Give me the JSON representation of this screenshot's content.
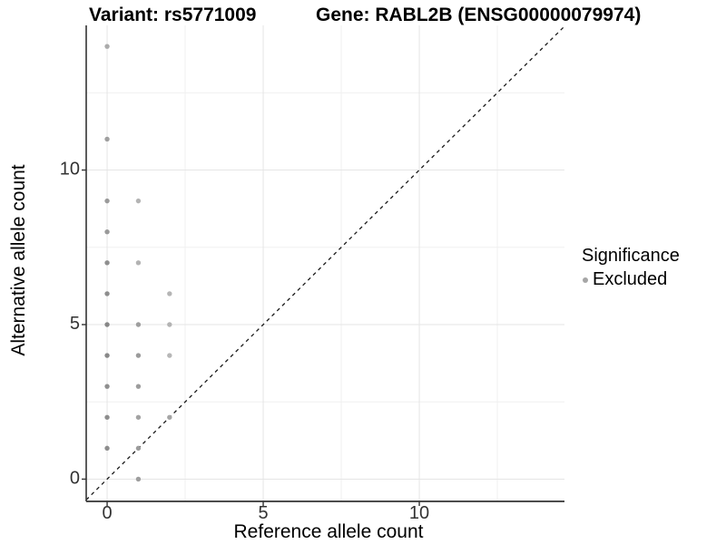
{
  "chart_data": {
    "type": "scatter",
    "title_left": "Variant: rs5771009",
    "title_right": "Gene: RABL2B (ENSG00000079974)",
    "xlabel": "Reference allele count",
    "ylabel": "Alternative allele count",
    "xlim": [
      -0.67,
      14.65
    ],
    "ylim": [
      -0.72,
      14.68
    ],
    "x_ticks": [
      0,
      5,
      10
    ],
    "y_ticks": [
      0,
      5,
      10
    ],
    "x_tick_labels": [
      "0",
      "5",
      "10"
    ],
    "y_tick_labels": [
      "0",
      "5",
      "10"
    ],
    "x_minor_ticks": [
      2.5,
      7.5,
      12.5
    ],
    "y_minor_ticks": [
      2.5,
      7.5,
      12.5
    ],
    "grid": "major and minor gridlines, white background",
    "identity_line": {
      "style": "dashed",
      "from": -0.67,
      "to": 14.66,
      "color": "#1a1a1a"
    },
    "legend": {
      "title": "Significance",
      "position": "right",
      "entries": [
        {
          "label": "Excluded",
          "color": "#a6a6a6"
        }
      ]
    },
    "series": [
      {
        "name": "Excluded",
        "points": [
          {
            "x": 0,
            "y": 1,
            "color": "#8d8d8d"
          },
          {
            "x": 0,
            "y": 2,
            "color": "#8d8d8d"
          },
          {
            "x": 0,
            "y": 3,
            "color": "#8f8f8f"
          },
          {
            "x": 0,
            "y": 4,
            "color": "#898989"
          },
          {
            "x": 0,
            "y": 5,
            "color": "#878787"
          },
          {
            "x": 0,
            "y": 6,
            "color": "#8e8e8e"
          },
          {
            "x": 0,
            "y": 7,
            "color": "#8f8f8f"
          },
          {
            "x": 0,
            "y": 8,
            "color": "#999999"
          },
          {
            "x": 0,
            "y": 9,
            "color": "#9a9a9a"
          },
          {
            "x": 0,
            "y": 11,
            "color": "#9f9f9f"
          },
          {
            "x": 0,
            "y": 14,
            "color": "#ababab"
          },
          {
            "x": 1,
            "y": 0,
            "color": "#9e9e9e"
          },
          {
            "x": 1,
            "y": 1,
            "color": "#9c9c9c"
          },
          {
            "x": 1,
            "y": 2,
            "color": "#a3a3a3"
          },
          {
            "x": 1,
            "y": 3,
            "color": "#9d9d9d"
          },
          {
            "x": 1,
            "y": 4,
            "color": "#9b9b9b"
          },
          {
            "x": 1,
            "y": 5,
            "color": "#9e9e9e"
          },
          {
            "x": 1,
            "y": 7,
            "color": "#b3b3b3"
          },
          {
            "x": 1,
            "y": 9,
            "color": "#b4b4b4"
          },
          {
            "x": 2,
            "y": 2,
            "color": "#a5a5a5"
          },
          {
            "x": 2,
            "y": 4,
            "color": "#b7b7b7"
          },
          {
            "x": 2,
            "y": 5,
            "color": "#b3b3b3"
          },
          {
            "x": 2,
            "y": 6,
            "color": "#b5b5b5"
          }
        ]
      }
    ]
  }
}
